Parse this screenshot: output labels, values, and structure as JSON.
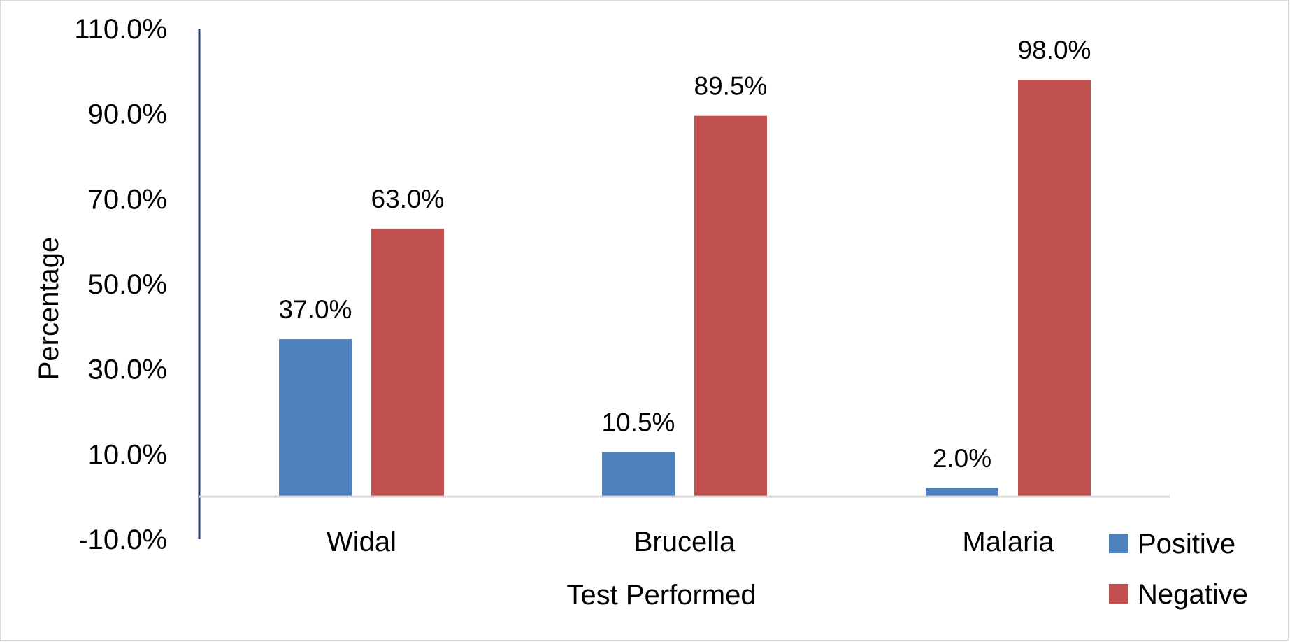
{
  "chart_data": {
    "type": "bar",
    "title": "",
    "xlabel": "Test Performed",
    "ylabel": "Percentage",
    "categories": [
      "Widal",
      "Brucella",
      "Malaria"
    ],
    "series": [
      {
        "name": "Positive",
        "values": [
          37.0,
          10.5,
          2.0
        ],
        "color": "#4F81BD"
      },
      {
        "name": "Negative",
        "values": [
          63.0,
          89.5,
          98.0
        ],
        "color": "#C0504D"
      }
    ],
    "ylim": [
      -10,
      110
    ],
    "yticks": [
      -10,
      10,
      30,
      50,
      70,
      90,
      110
    ],
    "ytick_labels": [
      "-10.0%",
      "10.0%",
      "30.0%",
      "50.0%",
      "70.0%",
      "90.0%",
      "110.0%"
    ],
    "data_labels": [
      [
        "37.0%",
        "10.5%",
        "2.0%"
      ],
      [
        "63.0%",
        "89.5%",
        "98.0%"
      ]
    ],
    "grid": false,
    "legend": "bottom-right"
  }
}
